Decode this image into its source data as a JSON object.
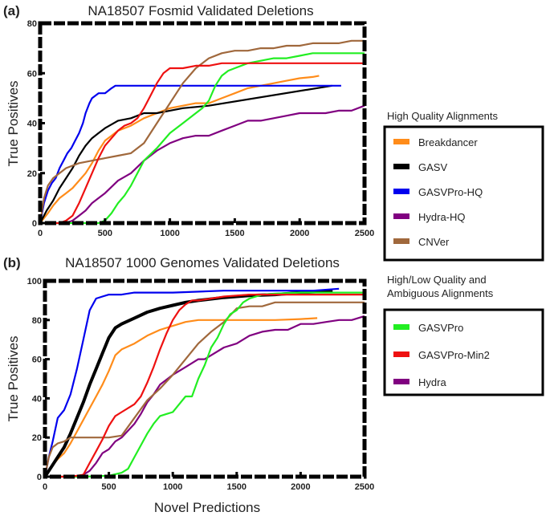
{
  "chart_data": [
    {
      "type": "line",
      "panel_label": "(a)",
      "title": "NA18507 Fosmid Validated Deletions",
      "xlabel": "",
      "ylabel": "True Positives",
      "xlim": [
        0,
        2500
      ],
      "ylim": [
        0,
        80
      ],
      "xticks": [
        "0",
        "500",
        "1000",
        "1500",
        "2000",
        "2500"
      ],
      "yticks": [
        "0",
        "20",
        "40",
        "60",
        "80"
      ],
      "grid": false,
      "series": [
        {
          "name": "Breakdancer",
          "color": "#ff8c1a",
          "x": [
            0,
            60,
            100,
            150,
            200,
            250,
            300,
            350,
            400,
            450,
            500,
            550,
            600,
            700,
            800,
            900,
            1000,
            1100,
            1200,
            1300,
            1400,
            1500,
            1600,
            1700,
            1800,
            1900,
            2000,
            2100,
            2150
          ],
          "y": [
            0,
            4,
            7,
            10,
            12,
            14,
            17,
            20,
            24,
            29,
            33,
            35,
            37,
            39,
            42,
            44,
            46,
            47,
            48,
            48,
            50,
            52,
            54,
            55,
            56,
            57,
            58,
            58.5,
            59
          ]
        },
        {
          "name": "GASV",
          "color": "#000000",
          "x": [
            0,
            50,
            100,
            150,
            200,
            250,
            300,
            350,
            400,
            450,
            500,
            600,
            700,
            800,
            900,
            1000,
            1100,
            1200,
            1300,
            2250
          ],
          "y": [
            0,
            5,
            9,
            14,
            18,
            22,
            27,
            31,
            34,
            36,
            38,
            41,
            42,
            44,
            44,
            45,
            46,
            46.5,
            47,
            55
          ]
        },
        {
          "name": "GASVPro-HQ",
          "color": "#0000ee",
          "x": [
            0,
            30,
            60,
            90,
            120,
            150,
            180,
            210,
            240,
            270,
            300,
            330,
            350,
            380,
            400,
            450,
            500,
            550,
            580,
            2320
          ],
          "y": [
            0,
            8,
            13,
            16,
            18,
            22,
            25,
            28,
            30,
            33,
            36,
            40,
            44,
            48,
            50,
            52,
            52,
            54,
            55,
            55
          ]
        },
        {
          "name": "Hydra-HQ",
          "color": "#800080",
          "x": [
            0,
            50,
            100,
            150,
            200,
            250,
            300,
            350,
            400,
            450,
            500,
            600,
            700,
            800,
            900,
            1000,
            1100,
            1200,
            1300,
            1400,
            1500,
            1600,
            1700,
            1800,
            1900,
            2000,
            2100,
            2200,
            2300,
            2400,
            2500
          ],
          "y": [
            0,
            0,
            0,
            0,
            0,
            1,
            3,
            5,
            8,
            10,
            12,
            17,
            20,
            25,
            29,
            32,
            34,
            35,
            35,
            37,
            39,
            41,
            41,
            42,
            43,
            44,
            44,
            44,
            45,
            45,
            47
          ]
        },
        {
          "name": "CNVer",
          "color": "#a0683c",
          "x": [
            0,
            30,
            60,
            100,
            150,
            200,
            300,
            400,
            500,
            600,
            700,
            800,
            900,
            1000,
            1100,
            1200,
            1300,
            1400,
            1500,
            1600,
            1700,
            1800,
            1900,
            2000,
            2100,
            2200,
            2300,
            2400,
            2500
          ],
          "y": [
            0,
            10,
            15,
            18,
            20,
            22,
            24,
            25,
            26,
            27,
            28,
            32,
            40,
            48,
            56,
            62,
            66,
            68,
            69,
            69,
            70,
            70,
            71,
            71,
            72,
            72,
            72,
            73,
            73
          ]
        },
        {
          "name": "GASVPro",
          "color": "#22ee22",
          "x": [
            0,
            400,
            450,
            500,
            550,
            600,
            650,
            700,
            750,
            800,
            900,
            1000,
            1100,
            1200,
            1250,
            1300,
            1350,
            1400,
            1450,
            1500,
            1600,
            1700,
            1800,
            1900,
            2000,
            2100,
            2200,
            2300,
            2400,
            2500
          ],
          "y": [
            0,
            0,
            0,
            1,
            4,
            8,
            11,
            15,
            20,
            25,
            30,
            36,
            40,
            44,
            46,
            49,
            55,
            59,
            61,
            62,
            64,
            65,
            66,
            66,
            67,
            68,
            68,
            68,
            68,
            68
          ]
        },
        {
          "name": "GASVPro-Min2",
          "color": "#ee1111",
          "x": [
            0,
            100,
            150,
            200,
            250,
            300,
            350,
            400,
            450,
            500,
            550,
            600,
            650,
            700,
            750,
            800,
            850,
            900,
            950,
            1000,
            1100,
            1200,
            1300,
            1400,
            1500,
            2000,
            2500
          ],
          "y": [
            0,
            0,
            0,
            1,
            3,
            8,
            14,
            20,
            26,
            31,
            34,
            37,
            39,
            40,
            42,
            46,
            51,
            56,
            60,
            62,
            62,
            63,
            63,
            64,
            64,
            64,
            64
          ]
        }
      ]
    },
    {
      "type": "line",
      "panel_label": "(b)",
      "title": "NA18507 1000 Genomes Validated Deletions",
      "xlabel": "Novel Predictions",
      "ylabel": "True Positives",
      "xlim": [
        0,
        2500
      ],
      "ylim": [
        0,
        100
      ],
      "xticks": [
        "0",
        "500",
        "1000",
        "1500",
        "2000",
        "2500"
      ],
      "yticks": [
        "0",
        "20",
        "40",
        "60",
        "80",
        "100"
      ],
      "grid": false,
      "series": [
        {
          "name": "Breakdancer",
          "color": "#ff8c1a",
          "x": [
            0,
            50,
            100,
            150,
            200,
            250,
            300,
            350,
            400,
            450,
            500,
            550,
            600,
            700,
            800,
            900,
            1000,
            1100,
            1200,
            1400,
            1600,
            1800,
            2000,
            2130
          ],
          "y": [
            0,
            5,
            9,
            12,
            17,
            23,
            29,
            35,
            41,
            47,
            54,
            62,
            65,
            68,
            72,
            75,
            77,
            79,
            80,
            80,
            80,
            80,
            80.5,
            81
          ]
        },
        {
          "name": "GASV",
          "color": "#000000",
          "x": [
            0,
            50,
            100,
            150,
            200,
            250,
            300,
            350,
            400,
            450,
            500,
            550,
            600,
            700,
            800,
            900,
            1000,
            1100,
            1200,
            1400,
            1600,
            1800,
            2000,
            2250
          ],
          "y": [
            0,
            5,
            10,
            15,
            22,
            30,
            38,
            47,
            55,
            63,
            71,
            76,
            78,
            81,
            84,
            86,
            87.5,
            89,
            90,
            91.5,
            92.5,
            93,
            94,
            95
          ]
        },
        {
          "name": "GASVPro-HQ",
          "color": "#0000ee",
          "x": [
            0,
            30,
            60,
            100,
            150,
            200,
            250,
            300,
            350,
            400,
            450,
            500,
            600,
            700,
            1000,
            1400,
            1800,
            2100,
            2300
          ],
          "y": [
            0,
            10,
            18,
            30,
            34,
            42,
            55,
            70,
            85,
            91,
            92,
            93,
            93,
            94,
            94,
            95,
            95,
            95,
            96
          ]
        },
        {
          "name": "Hydra",
          "color": "#800080",
          "x": [
            0,
            50,
            100,
            150,
            200,
            250,
            300,
            350,
            400,
            450,
            500,
            550,
            600,
            700,
            750,
            800,
            850,
            900,
            1000,
            1100,
            1200,
            1250,
            1300,
            1400,
            1500,
            1600,
            1700,
            1800,
            1900,
            2000,
            2100,
            2200,
            2300,
            2400,
            2500
          ],
          "y": [
            0,
            0,
            0,
            0,
            0,
            0,
            1,
            3,
            7,
            12,
            14,
            18,
            20,
            27,
            32,
            38,
            42,
            47,
            52,
            56,
            60,
            60,
            62,
            66,
            68,
            72,
            74,
            75,
            75,
            78,
            78,
            79,
            80,
            80,
            82
          ]
        },
        {
          "name": "CNVer",
          "color": "#a0683c",
          "x": [
            0,
            30,
            60,
            100,
            150,
            200,
            300,
            400,
            500,
            600,
            700,
            800,
            900,
            1000,
            1100,
            1200,
            1300,
            1400,
            1500,
            1600,
            1700,
            1800,
            2000,
            2200,
            2500
          ],
          "y": [
            0,
            10,
            15,
            17,
            18,
            20,
            20,
            20,
            20,
            21,
            30,
            39,
            45,
            52,
            60,
            68,
            74,
            79,
            86,
            87,
            87,
            89,
            89,
            89,
            89
          ]
        },
        {
          "name": "GASVPro",
          "color": "#22ee22",
          "x": [
            0,
            300,
            500,
            600,
            650,
            700,
            750,
            800,
            850,
            900,
            950,
            1000,
            1050,
            1100,
            1150,
            1200,
            1250,
            1300,
            1350,
            1400,
            1450,
            1500,
            1550,
            1600,
            1700,
            1800,
            2000,
            2200,
            2500
          ],
          "y": [
            0,
            0,
            0.5,
            2,
            4,
            10,
            16,
            22,
            27,
            31,
            32,
            33,
            37,
            41,
            41,
            50,
            57,
            66,
            71,
            78,
            83,
            85,
            89,
            91,
            93,
            93.5,
            94,
            94,
            94
          ]
        },
        {
          "name": "GASVPro-Min2",
          "color": "#ee1111",
          "x": [
            0,
            200,
            300,
            350,
            400,
            450,
            500,
            550,
            600,
            650,
            700,
            750,
            800,
            850,
            900,
            950,
            1000,
            1050,
            1100,
            1150,
            1200,
            1300,
            1400,
            1600,
            1800,
            2000,
            2500
          ],
          "y": [
            0,
            0,
            1,
            7,
            13,
            19,
            26,
            31,
            33,
            35,
            37,
            41,
            48,
            56,
            65,
            73,
            80,
            85,
            88,
            90,
            90,
            91,
            92,
            93,
            93,
            93,
            93
          ]
        }
      ]
    }
  ],
  "legends": {
    "high_quality": {
      "title": "High Quality Alignments",
      "items": [
        {
          "label": "Breakdancer",
          "color": "#ff8c1a"
        },
        {
          "label": "GASV",
          "color": "#000000"
        },
        {
          "label": "GASVPro-HQ",
          "color": "#0000ee"
        },
        {
          "label": "Hydra-HQ",
          "color": "#800080"
        },
        {
          "label": "CNVer",
          "color": "#a0683c"
        }
      ]
    },
    "mixed_quality": {
      "title_line1": "High/Low Quality and",
      "title_line2": "Ambiguous Alignments",
      "items": [
        {
          "label": "GASVPro",
          "color": "#22ee22"
        },
        {
          "label": "GASVPro-Min2",
          "color": "#ee1111"
        },
        {
          "label": "Hydra",
          "color": "#800080"
        }
      ]
    }
  }
}
